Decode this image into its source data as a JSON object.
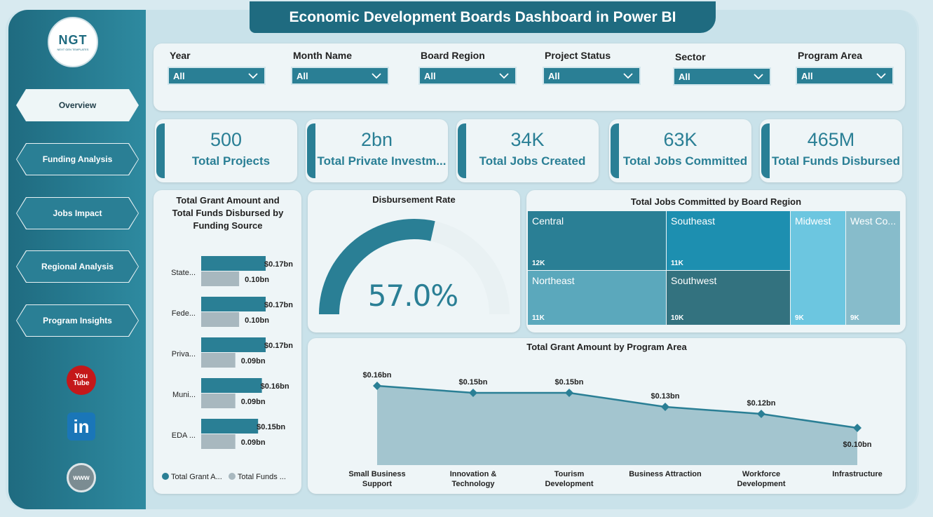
{
  "title": "Economic Development Boards Dashboard in Power BI",
  "logo": {
    "text": "NGT",
    "subtext": "NEXT GEN TEMPLATES"
  },
  "nav": [
    {
      "label": "Overview",
      "active": true
    },
    {
      "label": "Funding Analysis",
      "active": false
    },
    {
      "label": "Jobs Impact",
      "active": false
    },
    {
      "label": "Regional Analysis",
      "active": false
    },
    {
      "label": "Program Insights",
      "active": false
    }
  ],
  "social": {
    "youtube_top": "You",
    "youtube_bottom": "Tube",
    "linkedin": "in",
    "web": "www"
  },
  "filters": [
    {
      "label": "Year",
      "value": "All"
    },
    {
      "label": "Month Name",
      "value": "All"
    },
    {
      "label": "Board Region",
      "value": "All"
    },
    {
      "label": "Project Status",
      "value": "All"
    },
    {
      "label": "Sector",
      "value": "All"
    },
    {
      "label": "Program Area",
      "value": "All"
    }
  ],
  "kpis": [
    {
      "value": "500",
      "label": "Total Projects"
    },
    {
      "value": "2bn",
      "label": "Total Private Investm..."
    },
    {
      "value": "34K",
      "label": "Total Jobs Created"
    },
    {
      "value": "63K",
      "label": "Total Jobs Committed"
    },
    {
      "value": "465M",
      "label": "Total Funds Disbursed"
    }
  ],
  "colors": {
    "primary": "#2a7f95",
    "secondary": "#a8b8bf",
    "dark": "#1f6b80"
  },
  "chart_data": [
    {
      "type": "bar",
      "title": "Total Grant Amount and Total Funds Disbursed by Funding Source",
      "categories": [
        "State...",
        "Fede...",
        "Priva...",
        "Muni...",
        "EDA ..."
      ],
      "series": [
        {
          "name": "Total Grant A...",
          "values": [
            0.17,
            0.17,
            0.17,
            0.16,
            0.15
          ],
          "labels": [
            "$0.17bn",
            "$0.17bn",
            "$0.17bn",
            "$0.16bn",
            "$0.15bn"
          ]
        },
        {
          "name": "Total Funds ...",
          "values": [
            0.1,
            0.1,
            0.09,
            0.09,
            0.09
          ],
          "labels": [
            "0.10bn",
            "0.10bn",
            "0.09bn",
            "0.09bn",
            "0.09bn"
          ]
        }
      ]
    },
    {
      "type": "gauge",
      "title": "Disbursement Rate",
      "value": 57.0,
      "label": "57.0%",
      "max": 100
    },
    {
      "type": "treemap",
      "title": "Total Jobs Committed by Board Region",
      "items": [
        {
          "name": "Central",
          "label": "12K",
          "value": 12,
          "color": "#2a7f95"
        },
        {
          "name": "Southeast",
          "label": "11K",
          "value": 11,
          "color": "#1d8fb0"
        },
        {
          "name": "Northeast",
          "label": "11K",
          "value": 11,
          "color": "#5ba8bc"
        },
        {
          "name": "Southwest",
          "label": "10K",
          "value": 10,
          "color": "#33727f"
        },
        {
          "name": "Midwest",
          "label": "9K",
          "value": 9,
          "color": "#6cc6e0"
        },
        {
          "name": "West Co...",
          "label": "9K",
          "value": 9,
          "color": "#87bccb"
        }
      ]
    },
    {
      "type": "area",
      "title": "Total Grant Amount by Program Area",
      "categories": [
        "Small Business Support",
        "Innovation & Technology",
        "Tourism Development",
        "Business Attraction",
        "Workforce Development",
        "Infrastructure"
      ],
      "category_lines": [
        [
          "Small Business",
          "Support"
        ],
        [
          "Innovation &",
          "Technology"
        ],
        [
          "Tourism",
          "Development"
        ],
        [
          "Business Attraction"
        ],
        [
          "Workforce",
          "Development"
        ],
        [
          "Infrastructure"
        ]
      ],
      "values": [
        0.16,
        0.15,
        0.15,
        0.13,
        0.12,
        0.1
      ],
      "labels": [
        "$0.16bn",
        "$0.15bn",
        "$0.15bn",
        "$0.13bn",
        "$0.12bn",
        "$0.10bn"
      ]
    }
  ]
}
